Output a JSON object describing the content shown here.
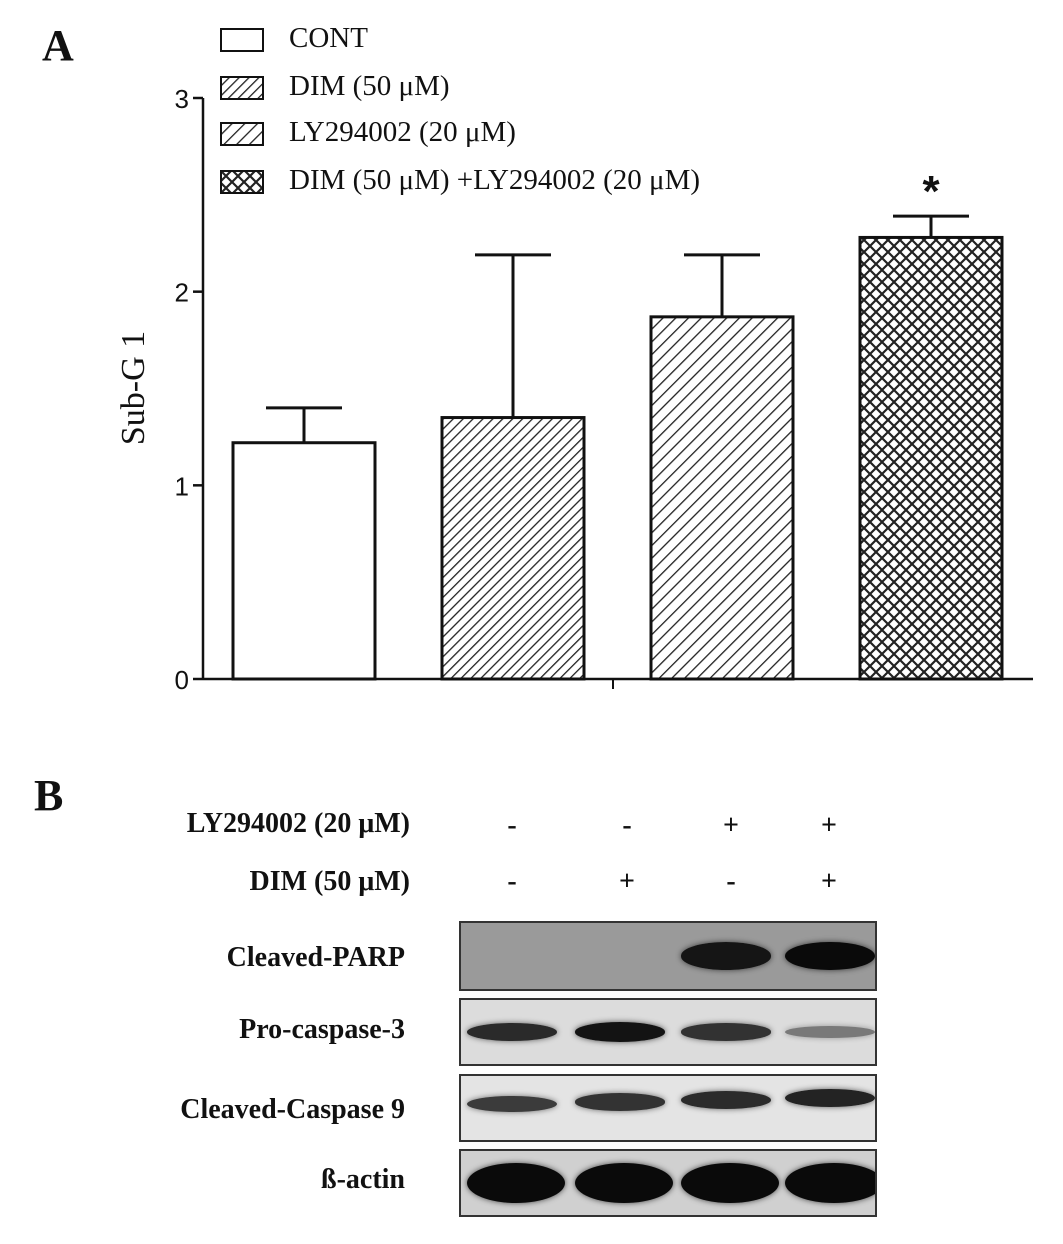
{
  "panel_a": {
    "letter": "A"
  },
  "panel_b": {
    "letter": "B"
  },
  "legend": [
    {
      "label": "CONT",
      "pattern": "none"
    },
    {
      "label": "DIM (50 μM)",
      "pattern": "dense-diagonal"
    },
    {
      "label": "LY294002 (20 μM)",
      "pattern": "diagonal"
    },
    {
      "label": "DIM (50 μM) +LY294002 (20 μM)",
      "pattern": "crosshatch"
    }
  ],
  "chart_data": {
    "type": "bar",
    "categories": [
      "CONT",
      "DIM (50 μM)",
      "LY294002 (20 μM)",
      "DIM (50 μM) +LY294002 (20 μM)"
    ],
    "series": [
      {
        "values": [
          1.22,
          1.35,
          1.87,
          2.28
        ],
        "errors": [
          0.18,
          0.84,
          0.32,
          0.11
        ]
      }
    ],
    "ylabel": "Sub-G 1",
    "xlabel": "",
    "ylim": [
      0,
      3
    ],
    "yticks": [
      "0",
      "1",
      "2",
      "3"
    ],
    "annotations": [
      {
        "category": "DIM (50 μM) +LY294002 (20 μM)",
        "text": "*"
      }
    ],
    "legend_position": "top-left"
  },
  "blot": {
    "conditions": [
      {
        "label": "LY294002 (20 μM)",
        "signs": [
          "-",
          "-",
          "+",
          "+"
        ]
      },
      {
        "label": "DIM (50 μM)",
        "signs": [
          "-",
          "+",
          "-",
          "+"
        ]
      }
    ],
    "rows": [
      {
        "label": "Cleaved-PARP",
        "bands": [
          0,
          0,
          0.9,
          1.0
        ]
      },
      {
        "label": "Pro-caspase-3",
        "bands": [
          0.8,
          0.95,
          0.75,
          0.3
        ]
      },
      {
        "label": "Cleaved-Caspase 9",
        "bands": [
          0.7,
          0.75,
          0.8,
          0.85
        ]
      },
      {
        "label": "ß-actin",
        "bands": [
          1.0,
          1.0,
          1.0,
          1.0
        ]
      }
    ],
    "colors": {
      "band": "#0a0a0a",
      "background": "#e9e9e9"
    }
  }
}
